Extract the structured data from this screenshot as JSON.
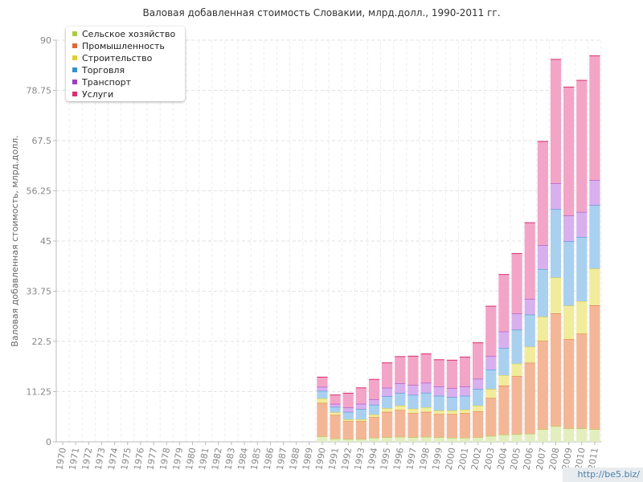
{
  "chart_data": {
    "type": "bar",
    "stacked": true,
    "title": "Валовая добавленная стоимость Словакии, млрд.долл., 1990-2011 гг.",
    "ylabel": "Валовая добавленная стоимость, млрд.долл.",
    "xlabel": "",
    "ylim": [
      0,
      90
    ],
    "yticks": [
      "0",
      "11.25",
      "22.5",
      "33.75",
      "45",
      "56.25",
      "67.5",
      "78.75",
      "90"
    ],
    "grid": true,
    "legend_position": "top-left",
    "categories": [
      "1970",
      "1971",
      "1972",
      "1973",
      "1974",
      "1975",
      "1976",
      "1977",
      "1978",
      "1979",
      "1980",
      "1981",
      "1982",
      "1983",
      "1984",
      "1985",
      "1986",
      "1987",
      "1988",
      "1989",
      "1990",
      "1991",
      "1992",
      "1993",
      "1994",
      "1995",
      "1996",
      "1997",
      "1998",
      "1999",
      "2000",
      "2001",
      "2002",
      "2003",
      "2004",
      "2005",
      "2006",
      "2007",
      "2008",
      "2009",
      "2010",
      "2011"
    ],
    "series": [
      {
        "name": "Сельское хозяйство",
        "color": "#aacc44",
        "fill": "#e2eebe",
        "values": [
          0,
          0,
          0,
          0,
          0,
          0,
          0,
          0,
          0,
          0,
          0,
          0,
          0,
          0,
          0,
          0,
          0,
          0,
          0,
          0,
          1.2,
          0.7,
          0.6,
          0.6,
          0.9,
          1.0,
          1.1,
          1.0,
          1.1,
          1.0,
          0.9,
          0.9,
          1.0,
          1.3,
          1.6,
          1.7,
          1.8,
          2.8,
          3.5,
          3.0,
          3.0,
          2.8
        ]
      },
      {
        "name": "Промышленность",
        "color": "#e06a3a",
        "fill": "#f3b797",
        "values": [
          0,
          0,
          0,
          0,
          0,
          0,
          0,
          0,
          0,
          0,
          0,
          0,
          0,
          0,
          0,
          0,
          0,
          0,
          0,
          0,
          7.5,
          5.3,
          4.0,
          4.0,
          4.6,
          5.7,
          6.0,
          5.4,
          5.6,
          5.2,
          5.3,
          5.5,
          5.8,
          8.5,
          11.0,
          13.0,
          15.9,
          19.8,
          25.3,
          20.0,
          21.2,
          27.8
        ]
      },
      {
        "name": "Строительство",
        "color": "#e0d030",
        "fill": "#f1eb9c",
        "values": [
          0,
          0,
          0,
          0,
          0,
          0,
          0,
          0,
          0,
          0,
          0,
          0,
          0,
          0,
          0,
          0,
          0,
          0,
          0,
          0,
          1.0,
          0.6,
          0.4,
          0.4,
          0.6,
          0.8,
          1.0,
          1.0,
          1.0,
          0.8,
          0.8,
          0.8,
          1.3,
          2.0,
          2.3,
          2.8,
          3.6,
          5.4,
          8.0,
          7.5,
          7.3,
          8.2
        ]
      },
      {
        "name": "Торговля",
        "color": "#3a8fd0",
        "fill": "#a9d0ef",
        "values": [
          0,
          0,
          0,
          0,
          0,
          0,
          0,
          0,
          0,
          0,
          0,
          0,
          0,
          0,
          0,
          0,
          0,
          0,
          0,
          0,
          1.7,
          1.2,
          1.7,
          2.3,
          2.2,
          2.7,
          2.8,
          3.1,
          3.3,
          3.3,
          3.0,
          3.1,
          3.7,
          4.4,
          6.1,
          7.6,
          7.2,
          10.7,
          15.3,
          14.4,
          14.4,
          14.2
        ]
      },
      {
        "name": "Транспорт",
        "color": "#9a40c8",
        "fill": "#d8b0ee",
        "values": [
          0,
          0,
          0,
          0,
          0,
          0,
          0,
          0,
          0,
          0,
          0,
          0,
          0,
          0,
          0,
          0,
          0,
          0,
          0,
          0,
          0.9,
          0.7,
          1.0,
          1.2,
          1.2,
          1.9,
          2.2,
          2.2,
          2.2,
          2.1,
          2.0,
          2.1,
          2.3,
          3.0,
          3.7,
          3.6,
          3.5,
          5.4,
          5.8,
          5.8,
          5.6,
          5.6
        ]
      },
      {
        "name": "Услуги",
        "color": "#d83070",
        "fill": "#f2a5c7",
        "values": [
          0,
          0,
          0,
          0,
          0,
          0,
          0,
          0,
          0,
          0,
          0,
          0,
          0,
          0,
          0,
          0,
          0,
          0,
          0,
          0,
          2.2,
          2.0,
          3.2,
          3.6,
          4.5,
          5.6,
          6.0,
          6.5,
          6.5,
          6.0,
          6.3,
          6.6,
          8.1,
          11.2,
          12.8,
          13.5,
          17.1,
          23.2,
          27.8,
          28.8,
          29.5,
          27.9
        ]
      }
    ]
  },
  "watermark": "http://be5.biz/"
}
